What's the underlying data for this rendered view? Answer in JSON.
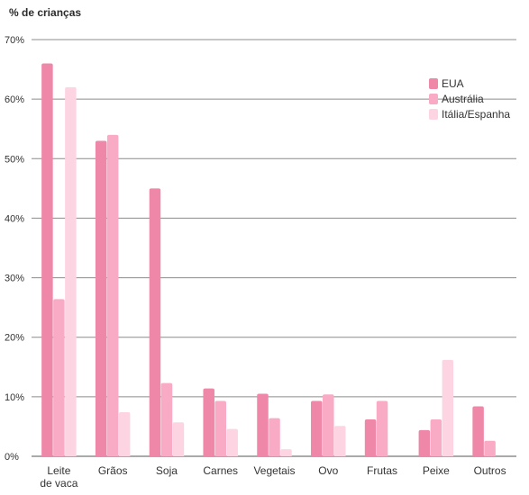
{
  "chart_data": {
    "type": "bar",
    "ylabel": "% de crianças",
    "xlabel": "",
    "title": "",
    "ylim": [
      0,
      70
    ],
    "ytick_step": 10,
    "ytick_suffix": "%",
    "grid": true,
    "legend_position": "top-right",
    "categories": [
      [
        "Leite",
        "de vaca"
      ],
      [
        "Grãos"
      ],
      [
        "Soja"
      ],
      [
        "Carnes"
      ],
      [
        "Vegetais"
      ],
      [
        "Ovo"
      ],
      [
        "Frutas"
      ],
      [
        "Peixe"
      ],
      [
        "Outros"
      ]
    ],
    "series": [
      {
        "name": "EUA",
        "color": "#ee87a8",
        "values": [
          66,
          53,
          45,
          11.4,
          10.5,
          9.3,
          6.2,
          4.4,
          8.4
        ]
      },
      {
        "name": "Austrália",
        "color": "#f9aac5",
        "values": [
          26.4,
          54,
          12.3,
          9.3,
          6.4,
          10.4,
          9.3,
          6.2,
          2.6
        ]
      },
      {
        "name": "Itália/Espanha",
        "color": "#fdd5e2",
        "values": [
          62,
          7.4,
          5.7,
          4.6,
          1.2,
          5.1,
          null,
          16.2,
          null
        ]
      }
    ]
  }
}
